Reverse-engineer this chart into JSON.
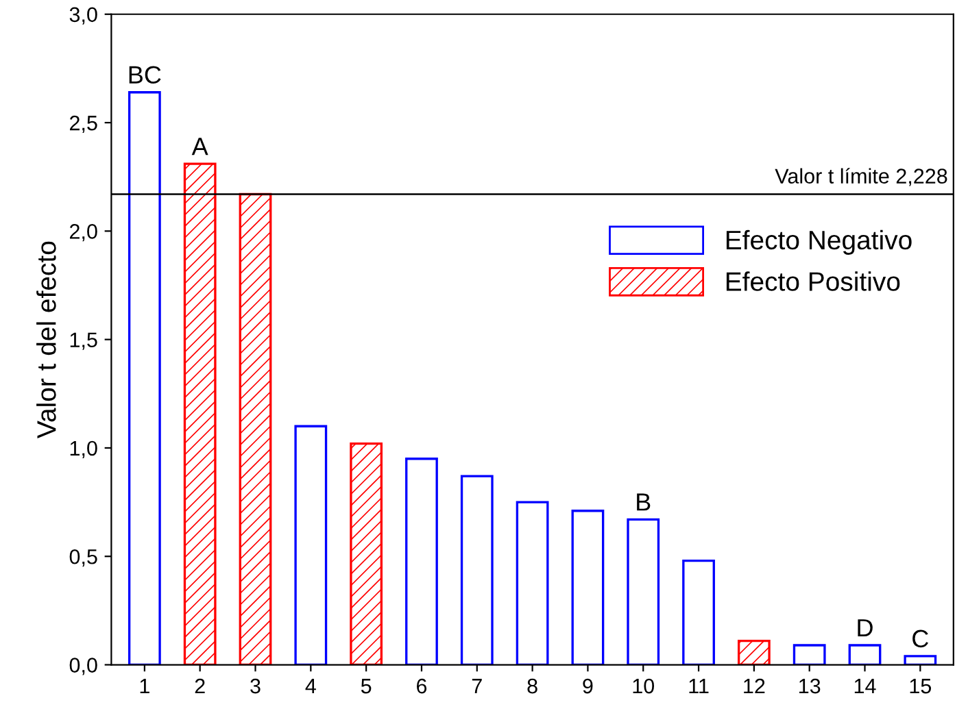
{
  "chart_data": {
    "type": "bar",
    "ylabel": "Valor t del efecto",
    "categories": [
      "1",
      "2",
      "3",
      "4",
      "5",
      "6",
      "7",
      "8",
      "9",
      "10",
      "11",
      "12",
      "13",
      "14",
      "15"
    ],
    "series": [
      {
        "name": "Efecto Negativo",
        "color": "#0000ff",
        "values": [
          2.64,
          null,
          null,
          1.1,
          null,
          0.95,
          0.87,
          0.75,
          0.71,
          0.67,
          0.48,
          null,
          0.09,
          0.09,
          0.04
        ]
      },
      {
        "name": "Efecto Positivo",
        "color": "#ff0000",
        "values": [
          null,
          2.31,
          2.17,
          null,
          1.02,
          null,
          null,
          null,
          null,
          null,
          null,
          0.11,
          null,
          null,
          null
        ]
      }
    ],
    "ylim": [
      0,
      3.0
    ],
    "yticks": [
      {
        "value": 0,
        "label": "0,0"
      },
      {
        "value": 0.5,
        "label": "0,5"
      },
      {
        "value": 1.0,
        "label": "1,0"
      },
      {
        "value": 1.5,
        "label": "1,5"
      },
      {
        "value": 2.0,
        "label": "2,0"
      },
      {
        "value": 2.5,
        "label": "2,5"
      },
      {
        "value": 3.0,
        "label": "3,0"
      }
    ],
    "ref_lines": [
      {
        "axis": "y",
        "value": 2.17,
        "label": "Valor t límite 2,228",
        "color": "#000000"
      }
    ],
    "annotations": [
      {
        "text": "BC",
        "x": "1",
        "y": 2.64
      },
      {
        "text": "A",
        "x": "2",
        "y": 2.31
      },
      {
        "text": "B",
        "x": "10",
        "y": 0.67
      },
      {
        "text": "D",
        "x": "14",
        "y": 0.09
      },
      {
        "text": "C",
        "x": "15",
        "y": 0.04
      }
    ],
    "legend": "right",
    "grid": false
  }
}
